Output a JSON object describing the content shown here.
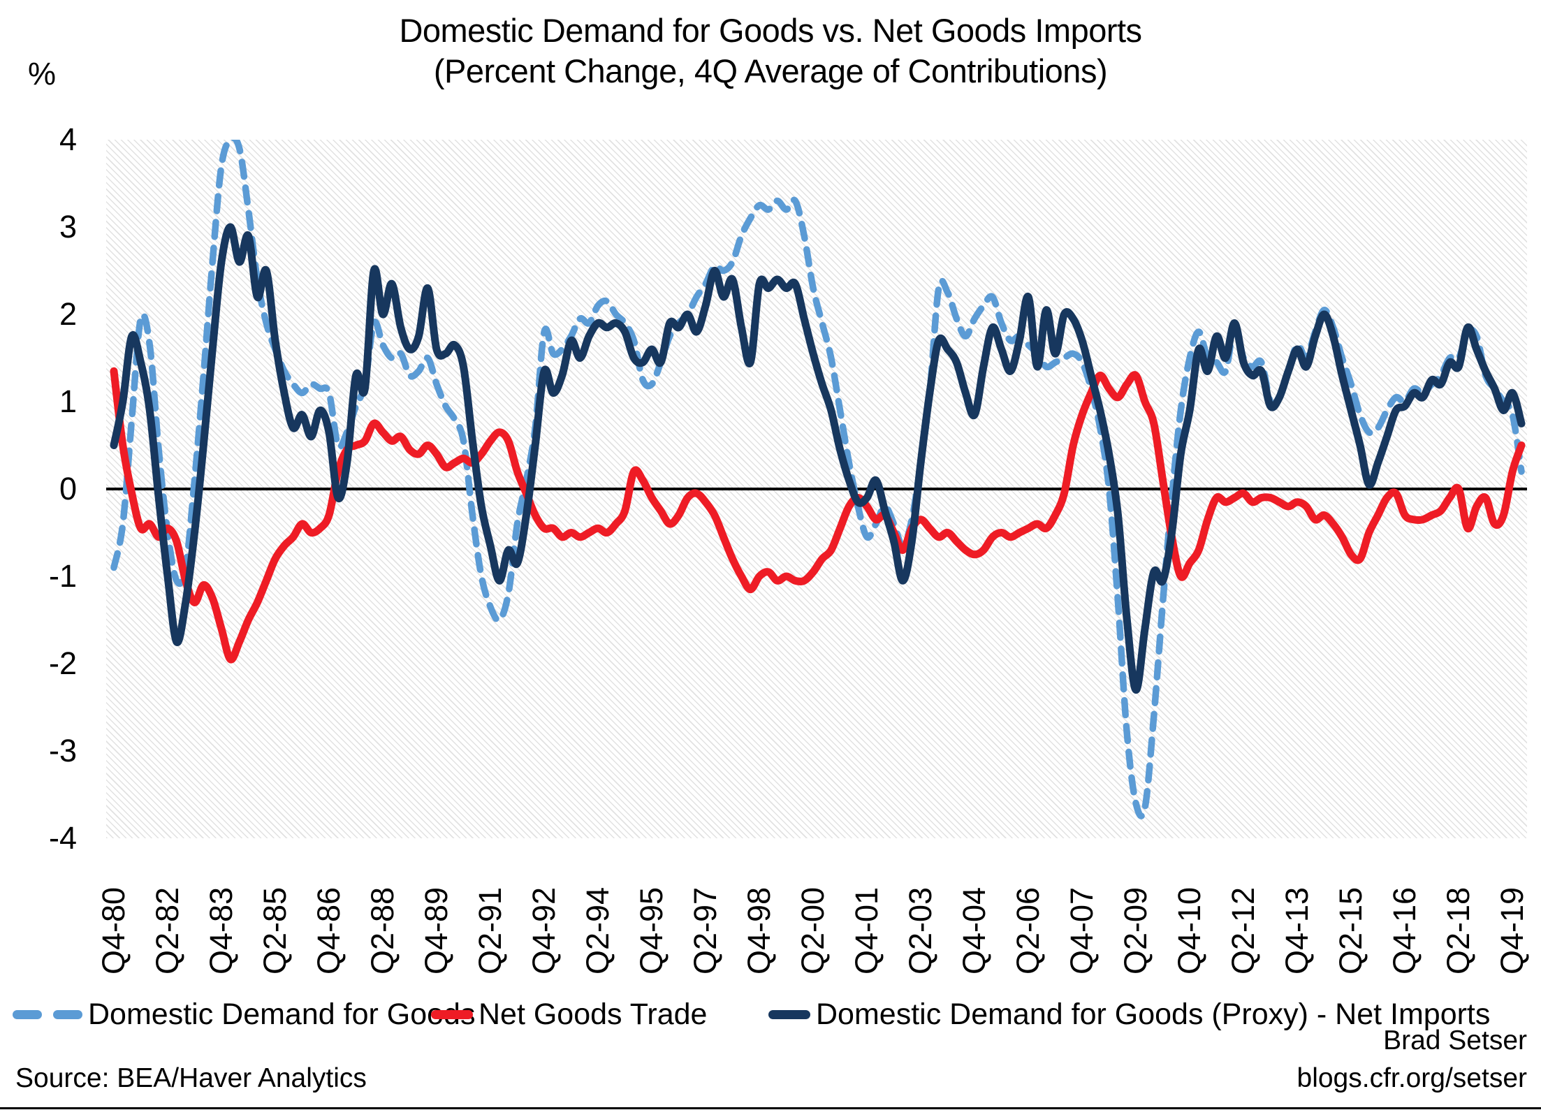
{
  "title": {
    "line1": "Domestic Demand for Goods vs. Net Goods Imports",
    "line2": "(Percent Change, 4Q Average of Contributions)"
  },
  "y_axis": {
    "unit_label": "%",
    "ticks": [
      "4",
      "3",
      "2",
      "1",
      "0",
      "-1",
      "-2",
      "-3",
      "-4"
    ]
  },
  "footer": {
    "source": "Source: BEA/Haver Analytics",
    "credit_name": "Brad Setser",
    "credit_url": "blogs.cfr.org/setser"
  },
  "colors": {
    "demand": "#5B9BD5",
    "net_trade": "#EE1C25",
    "proxy": "#17375E",
    "zero_line": "#000000"
  },
  "chart_data": {
    "type": "line",
    "title": "Domestic Demand for Goods vs. Net Goods Imports (Percent Change, 4Q Average of Contributions)",
    "ylabel": "%",
    "ylim": [
      -4,
      4
    ],
    "grid": false,
    "legend_position": "bottom",
    "x_start": "1980Q4",
    "x_end": "2020Q1",
    "x_count": 158,
    "tick_every": 6,
    "x_tick_labels": [
      "Q4-80",
      "Q2-82",
      "Q4-83",
      "Q2-85",
      "Q4-86",
      "Q2-88",
      "Q4-89",
      "Q2-91",
      "Q4-92",
      "Q2-94",
      "Q4-95",
      "Q2-97",
      "Q4-98",
      "Q2-00",
      "Q4-01",
      "Q2-03",
      "Q4-04",
      "Q2-06",
      "Q4-07",
      "Q2-09",
      "Q4-10",
      "Q2-12",
      "Q4-13",
      "Q2-15",
      "Q4-16",
      "Q2-18",
      "Q4-19"
    ],
    "series": [
      {
        "name": "Domestic Demand for Goods",
        "style": "dashed",
        "color_key": "demand",
        "values": [
          -0.9,
          -0.4,
          0.8,
          1.95,
          1.65,
          0.45,
          -0.5,
          -1.05,
          -0.9,
          0.1,
          1.3,
          2.6,
          3.7,
          4.0,
          3.9,
          3.2,
          2.4,
          1.9,
          1.6,
          1.35,
          1.2,
          1.1,
          1.2,
          1.15,
          1.1,
          0.5,
          0.65,
          0.95,
          1.2,
          1.9,
          1.65,
          1.5,
          1.55,
          1.3,
          1.35,
          1.5,
          1.2,
          0.95,
          0.8,
          0.55,
          -0.3,
          -1.0,
          -1.35,
          -1.5,
          -1.2,
          -0.4,
          0.1,
          0.7,
          1.8,
          1.55,
          1.6,
          1.75,
          1.95,
          1.9,
          2.1,
          2.15,
          2.0,
          1.9,
          1.7,
          1.25,
          1.2,
          1.45,
          1.75,
          1.9,
          2.0,
          2.2,
          2.35,
          2.55,
          2.5,
          2.6,
          2.9,
          3.1,
          3.25,
          3.2,
          3.3,
          3.2,
          3.3,
          2.9,
          2.3,
          1.9,
          1.5,
          0.9,
          0.3,
          -0.2,
          -0.55,
          -0.4,
          -0.2,
          -0.4,
          -0.65,
          -0.35,
          0.3,
          1.1,
          2.3,
          2.25,
          1.95,
          1.75,
          1.95,
          2.1,
          2.2,
          1.9,
          1.7,
          1.75,
          1.65,
          1.55,
          1.4,
          1.45,
          1.5,
          1.55,
          1.45,
          1.15,
          0.7,
          0.0,
          -1.3,
          -2.8,
          -3.6,
          -3.65,
          -2.6,
          -1.3,
          -0.1,
          0.9,
          1.5,
          1.8,
          1.5,
          1.45,
          1.35,
          1.85,
          1.5,
          1.4,
          1.45,
          1.0,
          1.05,
          1.35,
          1.65,
          1.5,
          1.8,
          2.05,
          1.85,
          1.5,
          1.2,
          0.85,
          0.65,
          0.7,
          0.9,
          1.05,
          1.0,
          1.15,
          1.1,
          1.2,
          1.3,
          1.5,
          1.5,
          1.8,
          1.75,
          1.3,
          1.15,
          1.0,
          0.85,
          0.2
        ]
      },
      {
        "name": "Net Goods Trade",
        "style": "solid",
        "color_key": "net_trade",
        "values": [
          1.35,
          0.5,
          -0.05,
          -0.45,
          -0.4,
          -0.55,
          -0.45,
          -0.6,
          -1.05,
          -1.3,
          -1.1,
          -1.25,
          -1.6,
          -1.95,
          -1.75,
          -1.5,
          -1.3,
          -1.05,
          -0.8,
          -0.65,
          -0.55,
          -0.4,
          -0.5,
          -0.45,
          -0.3,
          0.2,
          0.45,
          0.5,
          0.55,
          0.75,
          0.65,
          0.55,
          0.6,
          0.45,
          0.4,
          0.5,
          0.4,
          0.25,
          0.3,
          0.35,
          0.3,
          0.4,
          0.55,
          0.65,
          0.55,
          0.2,
          -0.05,
          -0.3,
          -0.45,
          -0.45,
          -0.55,
          -0.5,
          -0.55,
          -0.5,
          -0.45,
          -0.5,
          -0.4,
          -0.25,
          0.2,
          0.1,
          -0.1,
          -0.25,
          -0.4,
          -0.3,
          -0.1,
          -0.05,
          -0.15,
          -0.3,
          -0.55,
          -0.8,
          -1.0,
          -1.15,
          -1.0,
          -0.95,
          -1.05,
          -1.0,
          -1.05,
          -1.05,
          -0.95,
          -0.8,
          -0.7,
          -0.45,
          -0.2,
          -0.1,
          -0.2,
          -0.35,
          -0.3,
          -0.5,
          -0.7,
          -0.45,
          -0.35,
          -0.45,
          -0.55,
          -0.5,
          -0.6,
          -0.7,
          -0.75,
          -0.7,
          -0.55,
          -0.5,
          -0.55,
          -0.5,
          -0.45,
          -0.4,
          -0.45,
          -0.3,
          -0.05,
          0.5,
          0.85,
          1.1,
          1.3,
          1.15,
          1.05,
          1.2,
          1.3,
          1.0,
          0.75,
          0.1,
          -0.55,
          -1.0,
          -0.85,
          -0.7,
          -0.35,
          -0.1,
          -0.15,
          -0.1,
          -0.05,
          -0.15,
          -0.1,
          -0.1,
          -0.15,
          -0.2,
          -0.15,
          -0.2,
          -0.35,
          -0.3,
          -0.4,
          -0.55,
          -0.75,
          -0.8,
          -0.5,
          -0.3,
          -0.1,
          -0.05,
          -0.3,
          -0.35,
          -0.35,
          -0.3,
          -0.25,
          -0.1,
          0.0,
          -0.45,
          -0.2,
          -0.1,
          -0.4,
          -0.3,
          0.2,
          0.5
        ]
      },
      {
        "name": "Domestic Demand for Goods (Proxy) - Net Imports",
        "style": "solid",
        "color_key": "proxy",
        "values": [
          0.5,
          1.0,
          1.75,
          1.45,
          0.9,
          -0.1,
          -1.0,
          -1.75,
          -1.3,
          -0.5,
          0.5,
          1.6,
          2.6,
          3.0,
          2.6,
          2.9,
          2.2,
          2.5,
          1.7,
          1.1,
          0.7,
          0.85,
          0.6,
          0.9,
          0.65,
          -0.1,
          0.3,
          1.3,
          1.15,
          2.5,
          2.0,
          2.35,
          1.85,
          1.6,
          1.75,
          2.3,
          1.6,
          1.55,
          1.65,
          1.4,
          0.55,
          -0.2,
          -0.65,
          -1.05,
          -0.7,
          -0.85,
          -0.3,
          0.5,
          1.35,
          1.1,
          1.3,
          1.7,
          1.5,
          1.75,
          1.9,
          1.85,
          1.9,
          1.8,
          1.5,
          1.45,
          1.6,
          1.45,
          1.9,
          1.85,
          2.0,
          1.8,
          2.1,
          2.5,
          2.2,
          2.4,
          1.85,
          1.45,
          2.35,
          2.3,
          2.4,
          2.3,
          2.35,
          1.95,
          1.55,
          1.2,
          0.9,
          0.45,
          0.1,
          -0.15,
          -0.1,
          0.1,
          -0.25,
          -0.6,
          -1.05,
          -0.6,
          0.3,
          1.1,
          1.7,
          1.6,
          1.45,
          1.1,
          0.85,
          1.4,
          1.85,
          1.6,
          1.35,
          1.7,
          2.2,
          1.4,
          2.05,
          1.55,
          2.0,
          1.95,
          1.7,
          1.3,
          0.9,
          0.4,
          -0.3,
          -1.5,
          -2.3,
          -1.6,
          -0.95,
          -1.05,
          -0.5,
          0.4,
          0.9,
          1.6,
          1.35,
          1.75,
          1.5,
          1.9,
          1.45,
          1.3,
          1.35,
          0.95,
          1.05,
          1.35,
          1.6,
          1.4,
          1.75,
          2.0,
          1.75,
          1.3,
          0.9,
          0.5,
          0.05,
          0.3,
          0.6,
          0.9,
          0.95,
          1.1,
          1.05,
          1.25,
          1.2,
          1.45,
          1.4,
          1.85,
          1.6,
          1.35,
          1.15,
          0.9,
          1.1,
          0.75
        ]
      }
    ]
  }
}
